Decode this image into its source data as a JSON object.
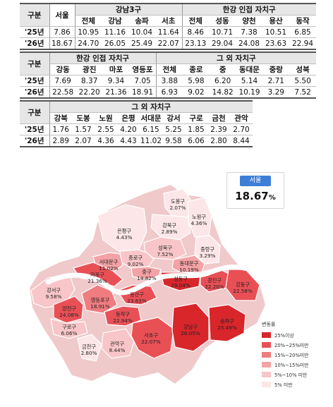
{
  "table1": {
    "side_label": "구분",
    "seoul_label": "서울",
    "group1": "강남3구",
    "group2": "한강 인접 자치구",
    "districts": [
      "전체",
      "강남",
      "송파",
      "서초",
      "전체",
      "성동",
      "양천",
      "용산",
      "동작"
    ],
    "rows": [
      {
        "label": "'25년",
        "seoul": "7.86",
        "values": [
          "10.95",
          "11.16",
          "10.04",
          "11.64",
          "8.46",
          "10.71",
          "7.38",
          "10.51",
          "6.85"
        ]
      },
      {
        "label": "'26년",
        "seoul": "18.67",
        "values": [
          "24.70",
          "26.05",
          "25.49",
          "22.07",
          "23.13",
          "29.04",
          "24.08",
          "23.63",
          "22.94"
        ]
      }
    ]
  },
  "table2": {
    "side_label": "구분",
    "group1": "한강 인접 자치구",
    "group2": "그 외 자치구",
    "districts": [
      "강동",
      "광진",
      "마포",
      "영등포",
      "전체",
      "종로",
      "중",
      "동대문",
      "중랑",
      "성북"
    ],
    "rows": [
      {
        "label": "'25년",
        "values": [
          "7.69",
          "8.37",
          "9.34",
          "7.05",
          "3.88",
          "5.98",
          "6.20",
          "5.14",
          "2.71",
          "5.50"
        ]
      },
      {
        "label": "'26년",
        "values": [
          "22.58",
          "22.20",
          "21.36",
          "18.91",
          "6.93",
          "9.02",
          "14.82",
          "10.19",
          "3.29",
          "7.52"
        ]
      }
    ]
  },
  "table3": {
    "side_label": "구분",
    "group": "그 외 자치구",
    "districts": [
      "강북",
      "도봉",
      "노원",
      "은평",
      "서대문",
      "강서",
      "구로",
      "금천",
      "관악"
    ],
    "rows": [
      {
        "label": "'25년",
        "values": [
          "1.76",
          "1.57",
          "2.55",
          "4.20",
          "6.15",
          "5.25",
          "1.85",
          "2.39",
          "2.70"
        ]
      },
      {
        "label": "'26년",
        "values": [
          "2.89",
          "2.07",
          "4.36",
          "4.43",
          "11.02",
          "9.58",
          "6.06",
          "2.80",
          "8.44"
        ]
      }
    ]
  },
  "badge": {
    "title": "서울",
    "value": "18.67",
    "unit": "%"
  },
  "map": {
    "districts": [
      {
        "name": "도봉구",
        "value": "2.07%",
        "tier": 5
      },
      {
        "name": "노원구",
        "value": "4.36%",
        "tier": 5
      },
      {
        "name": "강북구",
        "value": "2.89%",
        "tier": 5
      },
      {
        "name": "은평구",
        "value": "4.43%",
        "tier": 5
      },
      {
        "name": "중랑구",
        "value": "3.29%",
        "tier": 5
      },
      {
        "name": "성북구",
        "value": "7.52%",
        "tier": 4
      },
      {
        "name": "종로구",
        "value": "9.02%",
        "tier": 4
      },
      {
        "name": "동대문구",
        "value": "10.19%",
        "tier": 3
      },
      {
        "name": "서대문구",
        "value": "11.02%",
        "tier": 3
      },
      {
        "name": "중구",
        "value": "14.82%",
        "tier": 3
      },
      {
        "name": "마포구",
        "value": "21.36%",
        "tier": 1
      },
      {
        "name": "성동구",
        "value": "29.04%",
        "tier": 0
      },
      {
        "name": "광진구",
        "value": "22.20%",
        "tier": 1
      },
      {
        "name": "강동구",
        "value": "22.58%",
        "tier": 1
      },
      {
        "name": "강서구",
        "value": "9.58%",
        "tier": 4
      },
      {
        "name": "양천구",
        "value": "24.08%",
        "tier": 1
      },
      {
        "name": "영등포구",
        "value": "18.91%",
        "tier": 2
      },
      {
        "name": "용산구",
        "value": "23.63%",
        "tier": 1
      },
      {
        "name": "구로구",
        "value": "6.06%",
        "tier": 4
      },
      {
        "name": "동작구",
        "value": "22.94%",
        "tier": 1
      },
      {
        "name": "서초구",
        "value": "22.07%",
        "tier": 1
      },
      {
        "name": "강남구",
        "value": "26.05%",
        "tier": 0
      },
      {
        "name": "송파구",
        "value": "25.49%",
        "tier": 0
      },
      {
        "name": "금천구",
        "value": "2.80%",
        "tier": 5
      },
      {
        "name": "관악구",
        "value": "8.44%",
        "tier": 4
      }
    ]
  },
  "legend": {
    "title": "변동률",
    "items": [
      {
        "label": "25%이상",
        "color": "#d8262b"
      },
      {
        "label": "20%~25%미만",
        "color": "#e85056"
      },
      {
        "label": "15%~20%미만",
        "color": "#ef7c80"
      },
      {
        "label": "10%~15%미만",
        "color": "#f3a2a5"
      },
      {
        "label": "5%~10% 미만",
        "color": "#f8c6c8"
      },
      {
        "label": "5% 미만",
        "color": "#fce6e7"
      }
    ]
  }
}
